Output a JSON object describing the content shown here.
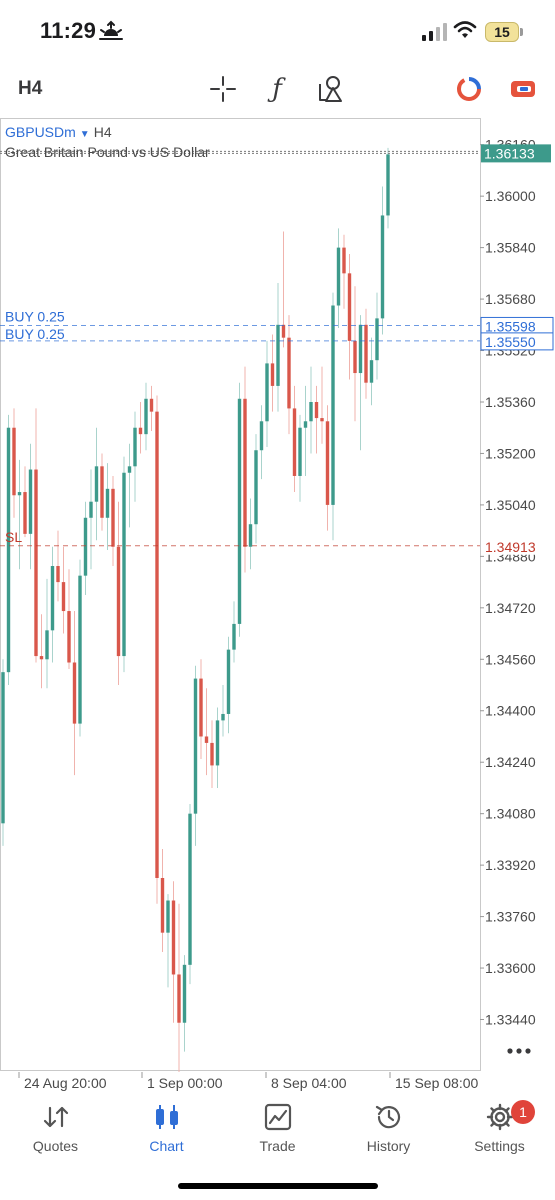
{
  "status_bar": {
    "time": "11:29",
    "battery": "15",
    "icons": [
      "sunrise-icon",
      "signal-icon",
      "wifi-icon",
      "battery-icon"
    ]
  },
  "toolbar": {
    "timeframe": "H4",
    "tools": [
      "crosshair-icon",
      "indicators-icon",
      "objects-icon",
      "one-click-trading-icon",
      "accounts-icon"
    ],
    "accent_colors": {
      "one_click": "#e5533c",
      "accounts": "#e5533c",
      "blue": "#2f6ed6"
    }
  },
  "chart_header": {
    "symbol": "GBPUSDm",
    "timeframe": "H4",
    "description": "Great Britain Pound vs US Dollar"
  },
  "chart_data": {
    "type": "candlestick",
    "symbol": "GBPUSDm",
    "timeframe": "H4",
    "y_ticks": [
      "1.36160",
      "1.36000",
      "1.35840",
      "1.35680",
      "1.35520",
      "1.35360",
      "1.35200",
      "1.35040",
      "1.34880",
      "1.34720",
      "1.34560",
      "1.34400",
      "1.34240",
      "1.34080",
      "1.33920",
      "1.33760",
      "1.33600",
      "1.33440"
    ],
    "x_labels": [
      "24 Aug 20:00",
      "1 Sep 00:00",
      "8 Sep 04:00",
      "15 Sep 08:00"
    ],
    "bull_color": "#3d9a8b",
    "bear_color": "#d9574b",
    "price_line": {
      "label": "1.36133",
      "value": 1.36133,
      "color": "#3d9a8b"
    },
    "orders": [
      {
        "label": "BUY 0.25",
        "price_label": "1.35598",
        "value": 1.35598,
        "color": "#2f6ed6"
      },
      {
        "label": "BUY 0.25",
        "price_label": "1.35550",
        "value": 1.3555,
        "color": "#2f6ed6"
      },
      {
        "label": "SL",
        "price_label": "1.34913",
        "value": 1.34913,
        "color": "#c0392b"
      }
    ],
    "candles": [
      {
        "o": 1.3405,
        "h": 1.3456,
        "l": 1.3398,
        "c": 1.3452
      },
      {
        "o": 1.3452,
        "h": 1.3532,
        "l": 1.3448,
        "c": 1.3528
      },
      {
        "o": 1.3528,
        "h": 1.3534,
        "l": 1.35,
        "c": 1.3507
      },
      {
        "o": 1.3507,
        "h": 1.3518,
        "l": 1.3484,
        "c": 1.3508
      },
      {
        "o": 1.3508,
        "h": 1.3516,
        "l": 1.3494,
        "c": 1.3495
      },
      {
        "o": 1.3495,
        "h": 1.3523,
        "l": 1.3484,
        "c": 1.3515
      },
      {
        "o": 1.3515,
        "h": 1.3534,
        "l": 1.3455,
        "c": 1.3457
      },
      {
        "o": 1.3457,
        "h": 1.347,
        "l": 1.3447,
        "c": 1.3456
      },
      {
        "o": 1.3456,
        "h": 1.3481,
        "l": 1.3447,
        "c": 1.3465
      },
      {
        "o": 1.3465,
        "h": 1.3491,
        "l": 1.3455,
        "c": 1.3485
      },
      {
        "o": 1.3485,
        "h": 1.3496,
        "l": 1.3474,
        "c": 1.348
      },
      {
        "o": 1.348,
        "h": 1.3491,
        "l": 1.3464,
        "c": 1.3471
      },
      {
        "o": 1.3471,
        "h": 1.3484,
        "l": 1.3453,
        "c": 1.3455
      },
      {
        "o": 1.3455,
        "h": 1.3471,
        "l": 1.342,
        "c": 1.3436
      },
      {
        "o": 1.3436,
        "h": 1.3487,
        "l": 1.3432,
        "c": 1.3482
      },
      {
        "o": 1.3482,
        "h": 1.3505,
        "l": 1.3476,
        "c": 1.35
      },
      {
        "o": 1.35,
        "h": 1.3515,
        "l": 1.3484,
        "c": 1.3505
      },
      {
        "o": 1.3505,
        "h": 1.3528,
        "l": 1.3493,
        "c": 1.3516
      },
      {
        "o": 1.3516,
        "h": 1.352,
        "l": 1.3496,
        "c": 1.35
      },
      {
        "o": 1.35,
        "h": 1.3517,
        "l": 1.349,
        "c": 1.3509
      },
      {
        "o": 1.3509,
        "h": 1.3513,
        "l": 1.3485,
        "c": 1.3491
      },
      {
        "o": 1.3491,
        "h": 1.3505,
        "l": 1.3448,
        "c": 1.3457
      },
      {
        "o": 1.3457,
        "h": 1.3519,
        "l": 1.3452,
        "c": 1.3514
      },
      {
        "o": 1.3514,
        "h": 1.3523,
        "l": 1.3497,
        "c": 1.3516
      },
      {
        "o": 1.3516,
        "h": 1.3533,
        "l": 1.3505,
        "c": 1.3528
      },
      {
        "o": 1.3528,
        "h": 1.3536,
        "l": 1.352,
        "c": 1.3526
      },
      {
        "o": 1.3526,
        "h": 1.3542,
        "l": 1.3521,
        "c": 1.3537
      },
      {
        "o": 1.3537,
        "h": 1.3541,
        "l": 1.3527,
        "c": 1.3533
      },
      {
        "o": 1.3533,
        "h": 1.3538,
        "l": 1.338,
        "c": 1.3388
      },
      {
        "o": 1.3388,
        "h": 1.3397,
        "l": 1.3365,
        "c": 1.3371
      },
      {
        "o": 1.3371,
        "h": 1.3383,
        "l": 1.3354,
        "c": 1.3381
      },
      {
        "o": 1.3381,
        "h": 1.3387,
        "l": 1.3343,
        "c": 1.3358
      },
      {
        "o": 1.3358,
        "h": 1.338,
        "l": 1.3327,
        "c": 1.3343
      },
      {
        "o": 1.3343,
        "h": 1.3364,
        "l": 1.3334,
        "c": 1.3361
      },
      {
        "o": 1.3361,
        "h": 1.3411,
        "l": 1.3355,
        "c": 1.3408
      },
      {
        "o": 1.3408,
        "h": 1.3454,
        "l": 1.3398,
        "c": 1.345
      },
      {
        "o": 1.345,
        "h": 1.3456,
        "l": 1.3425,
        "c": 1.3432
      },
      {
        "o": 1.3432,
        "h": 1.3447,
        "l": 1.342,
        "c": 1.343
      },
      {
        "o": 1.343,
        "h": 1.3437,
        "l": 1.3416,
        "c": 1.3423
      },
      {
        "o": 1.3423,
        "h": 1.3441,
        "l": 1.3416,
        "c": 1.3437
      },
      {
        "o": 1.3437,
        "h": 1.3448,
        "l": 1.3432,
        "c": 1.3439
      },
      {
        "o": 1.3439,
        "h": 1.3463,
        "l": 1.3433,
        "c": 1.3459
      },
      {
        "o": 1.3459,
        "h": 1.3474,
        "l": 1.3455,
        "c": 1.3467
      },
      {
        "o": 1.3467,
        "h": 1.3542,
        "l": 1.3463,
        "c": 1.3537
      },
      {
        "o": 1.3537,
        "h": 1.3547,
        "l": 1.3483,
        "c": 1.3491
      },
      {
        "o": 1.3491,
        "h": 1.3506,
        "l": 1.3484,
        "c": 1.3498
      },
      {
        "o": 1.3498,
        "h": 1.3526,
        "l": 1.3492,
        "c": 1.3521
      },
      {
        "o": 1.3521,
        "h": 1.3535,
        "l": 1.3512,
        "c": 1.353
      },
      {
        "o": 1.353,
        "h": 1.3555,
        "l": 1.3522,
        "c": 1.3548
      },
      {
        "o": 1.3548,
        "h": 1.3557,
        "l": 1.3533,
        "c": 1.3541
      },
      {
        "o": 1.3541,
        "h": 1.3573,
        "l": 1.3533,
        "c": 1.356
      },
      {
        "o": 1.356,
        "h": 1.3589,
        "l": 1.3553,
        "c": 1.3556
      },
      {
        "o": 1.3556,
        "h": 1.3563,
        "l": 1.3526,
        "c": 1.3534
      },
      {
        "o": 1.3534,
        "h": 1.3541,
        "l": 1.3508,
        "c": 1.3513
      },
      {
        "o": 1.3513,
        "h": 1.3532,
        "l": 1.3505,
        "c": 1.3528
      },
      {
        "o": 1.3528,
        "h": 1.3541,
        "l": 1.3513,
        "c": 1.353
      },
      {
        "o": 1.353,
        "h": 1.3547,
        "l": 1.352,
        "c": 1.3536
      },
      {
        "o": 1.3536,
        "h": 1.3541,
        "l": 1.352,
        "c": 1.3531
      },
      {
        "o": 1.3531,
        "h": 1.3547,
        "l": 1.3523,
        "c": 1.353
      },
      {
        "o": 1.353,
        "h": 1.3535,
        "l": 1.3496,
        "c": 1.3504
      },
      {
        "o": 1.3504,
        "h": 1.357,
        "l": 1.3493,
        "c": 1.3566
      },
      {
        "o": 1.3566,
        "h": 1.359,
        "l": 1.3559,
        "c": 1.3584
      },
      {
        "o": 1.3584,
        "h": 1.3588,
        "l": 1.3565,
        "c": 1.3576
      },
      {
        "o": 1.3576,
        "h": 1.3582,
        "l": 1.3543,
        "c": 1.3555
      },
      {
        "o": 1.3555,
        "h": 1.3572,
        "l": 1.353,
        "c": 1.3545
      },
      {
        "o": 1.3545,
        "h": 1.3563,
        "l": 1.3521,
        "c": 1.356
      },
      {
        "o": 1.356,
        "h": 1.3565,
        "l": 1.3537,
        "c": 1.3542
      },
      {
        "o": 1.3542,
        "h": 1.3556,
        "l": 1.3535,
        "c": 1.3549
      },
      {
        "o": 1.3549,
        "h": 1.357,
        "l": 1.3543,
        "c": 1.3562
      },
      {
        "o": 1.3562,
        "h": 1.3603,
        "l": 1.3557,
        "c": 1.3594
      },
      {
        "o": 1.3594,
        "h": 1.3615,
        "l": 1.359,
        "c": 1.3613
      }
    ]
  },
  "tabs": [
    {
      "label": "Quotes",
      "icon": "quotes-icon",
      "active": false
    },
    {
      "label": "Chart",
      "icon": "chart-icon",
      "active": true
    },
    {
      "label": "Trade",
      "icon": "trade-icon",
      "active": false
    },
    {
      "label": "History",
      "icon": "history-icon",
      "active": false
    },
    {
      "label": "Settings",
      "icon": "settings-icon",
      "active": false,
      "badge": "1"
    }
  ]
}
